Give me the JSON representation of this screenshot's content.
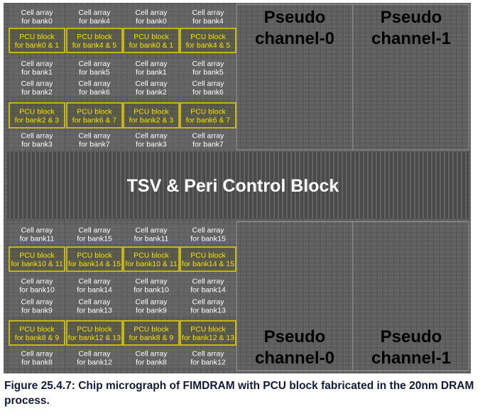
{
  "top_rows": [
    [
      [
        "Cell array",
        "for bank0"
      ],
      [
        "Cell array",
        "for bank4"
      ],
      [
        "Cell array",
        "for bank0"
      ],
      [
        "Cell array",
        "for bank4"
      ]
    ],
    [
      [
        "PCU block",
        "for bank0 & 1"
      ],
      [
        "PCU block",
        "for bank4 & 5"
      ],
      [
        "PCU block",
        "for bank0 & 1"
      ],
      [
        "PCU block",
        "for bank4 & 5"
      ]
    ],
    [
      [
        "Cell array",
        "for bank1"
      ],
      [
        "Cell array",
        "for bank5"
      ],
      [
        "Cell array",
        "for bank1"
      ],
      [
        "Cell array",
        "for bank5"
      ]
    ],
    [
      [
        "Cell array",
        "for bank2"
      ],
      [
        "Cell array",
        "for bank6"
      ],
      [
        "Cell array",
        "for bank2"
      ],
      [
        "Cell array",
        "for bank6"
      ]
    ],
    [
      [
        "PCU block",
        "for bank2 & 3"
      ],
      [
        "PCU block",
        "for bank6 & 7"
      ],
      [
        "PCU block",
        "for bank2 & 3"
      ],
      [
        "PCU block",
        "for bank6 & 7"
      ]
    ],
    [
      [
        "Cell array",
        "for bank3"
      ],
      [
        "Cell array",
        "for bank7"
      ],
      [
        "Cell array",
        "for bank3"
      ],
      [
        "Cell array",
        "for bank7"
      ]
    ]
  ],
  "bottom_rows": [
    [
      [
        "Cell array",
        "for bank11"
      ],
      [
        "Cell array",
        "for bank15"
      ],
      [
        "Cell array",
        "for bank11"
      ],
      [
        "Cell array",
        "for bank15"
      ]
    ],
    [
      [
        "PCU block",
        "for bank10 & 11"
      ],
      [
        "PCU block",
        "for bank14 & 15"
      ],
      [
        "PCU block",
        "for bank10 & 11"
      ],
      [
        "PCU block",
        "for bank14 & 15"
      ]
    ],
    [
      [
        "Cell array",
        "for bank10"
      ],
      [
        "Cell array",
        "for bank14"
      ],
      [
        "Cell array",
        "for bank10"
      ],
      [
        "Cell array",
        "for bank14"
      ]
    ],
    [
      [
        "Cell array",
        "for bank9"
      ],
      [
        "Cell array",
        "for bank13"
      ],
      [
        "Cell array",
        "for bank9"
      ],
      [
        "Cell array",
        "for bank13"
      ]
    ],
    [
      [
        "PCU block",
        "for bank8 & 9"
      ],
      [
        "PCU block",
        "for bank12 & 13"
      ],
      [
        "PCU block",
        "for bank8 & 9"
      ],
      [
        "PCU block",
        "for bank12 & 13"
      ]
    ],
    [
      [
        "Cell array",
        "for bank8"
      ],
      [
        "Cell array",
        "for bank12"
      ],
      [
        "Cell array",
        "for bank8"
      ],
      [
        "Cell array",
        "for bank12"
      ]
    ]
  ],
  "pseudo_channels_top": [
    [
      "Pseudo",
      "channel-0"
    ],
    [
      "Pseudo",
      "channel-1"
    ]
  ],
  "pseudo_channels_bottom": [
    [
      "Pseudo",
      "channel-0"
    ],
    [
      "Pseudo",
      "channel-1"
    ]
  ],
  "center_block": "TSV & Peri Control Block",
  "caption": "Figure 25.4.7: Chip micrograph of FIMDRAM with PCU block fabricated in the 20nm DRAM process."
}
